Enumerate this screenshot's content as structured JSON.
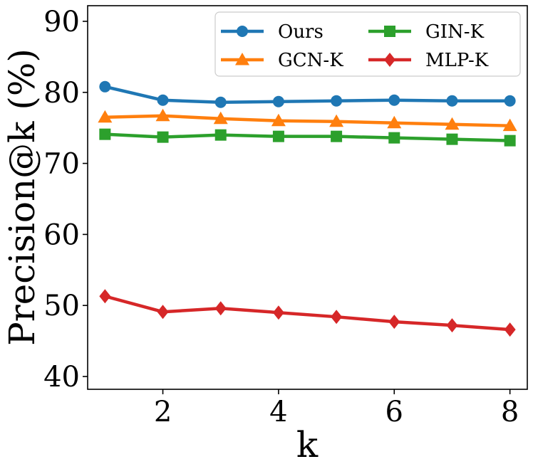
{
  "chart_data": {
    "type": "line",
    "title": "",
    "xlabel": "k",
    "ylabel": "Precision@k (%)",
    "xlim": [
      0.7,
      8.3
    ],
    "ylim": [
      38.2,
      92.2
    ],
    "xticks": [
      2,
      4,
      6,
      8
    ],
    "yticks": [
      40,
      50,
      60,
      70,
      80,
      90
    ],
    "grid": false,
    "legend_position": "top-right",
    "x": [
      1,
      2,
      3,
      4,
      5,
      6,
      7,
      8
    ],
    "series": [
      {
        "name": "Ours",
        "color": "#1f77b4",
        "marker": "circle",
        "values": [
          80.8,
          78.9,
          78.6,
          78.7,
          78.8,
          78.9,
          78.8,
          78.8
        ]
      },
      {
        "name": "GCN-K",
        "color": "#ff7f0e",
        "marker": "triangle",
        "values": [
          76.5,
          76.7,
          76.3,
          76.0,
          75.9,
          75.7,
          75.5,
          75.3
        ]
      },
      {
        "name": "GIN-K",
        "color": "#2ca02c",
        "marker": "square",
        "values": [
          74.1,
          73.7,
          74.0,
          73.8,
          73.8,
          73.6,
          73.4,
          73.2
        ]
      },
      {
        "name": "MLP-K",
        "color": "#d62728",
        "marker": "diamond",
        "values": [
          51.3,
          49.1,
          49.6,
          49.0,
          48.4,
          47.7,
          47.2,
          46.6
        ]
      }
    ]
  }
}
